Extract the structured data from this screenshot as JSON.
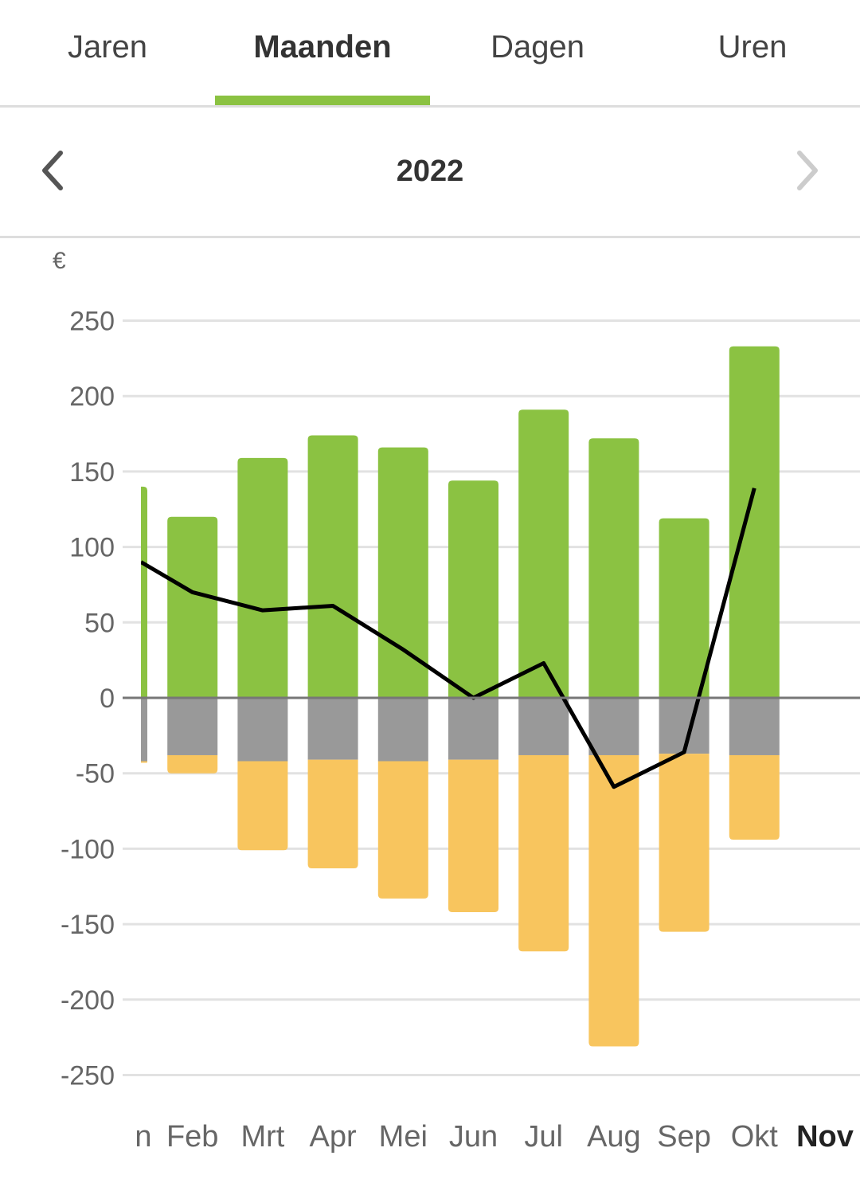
{
  "tabs": [
    {
      "label": "Jaren",
      "active": false
    },
    {
      "label": "Maanden",
      "active": true
    },
    {
      "label": "Dagen",
      "active": false
    },
    {
      "label": "Uren",
      "active": false
    }
  ],
  "period": {
    "title": "2022",
    "prev_icon": "chevron-left-icon",
    "next_icon": "chevron-right-icon",
    "next_enabled": false
  },
  "colors": {
    "accent": "#8bc242",
    "positive": "#8bc242",
    "gray_negative": "#999999",
    "yellow_negative": "#f8c55e",
    "line": "#000000",
    "grid": "#e2e2e2",
    "axis_zero": "#777777",
    "tick_text": "#666666",
    "highlight_label": "#222222"
  },
  "chart_data": {
    "type": "bar",
    "unit_label": "€",
    "ylim": [
      -250,
      250
    ],
    "yticks": [
      250,
      200,
      150,
      100,
      50,
      0,
      -50,
      -100,
      -150,
      -200,
      -250
    ],
    "ytick_labels": [
      "250",
      "200",
      "150",
      "100",
      "50",
      "0",
      "-50",
      "-100",
      "-150",
      "-200",
      "-250"
    ],
    "grid": true,
    "categories": [
      "Jan",
      "Feb",
      "Mrt",
      "Apr",
      "Mei",
      "Jun",
      "Jul",
      "Aug",
      "Sep",
      "Okt",
      "Nov"
    ],
    "category_labels": [
      "n",
      "Feb",
      "Mrt",
      "Apr",
      "Mei",
      "Jun",
      "Jul",
      "Aug",
      "Sep",
      "Okt",
      "Nov"
    ],
    "selected_category": "Nov",
    "partially_visible_category": "Jan",
    "series": [
      {
        "values": [
          140,
          120,
          159,
          174,
          166,
          144,
          191,
          172,
          119,
          233,
          0
        ]
      },
      {
        "values": [
          -42,
          -38,
          -42,
          -41,
          -42,
          -41,
          -38,
          -38,
          -37,
          -38,
          0
        ]
      },
      {
        "values": [
          -1,
          -12,
          -59,
          -72,
          -91,
          -101,
          -130,
          -193,
          -118,
          -56,
          0
        ]
      },
      {
        "values": [
          90,
          70,
          58,
          61,
          32,
          0,
          23,
          -59,
          -36,
          139,
          null
        ]
      }
    ]
  }
}
